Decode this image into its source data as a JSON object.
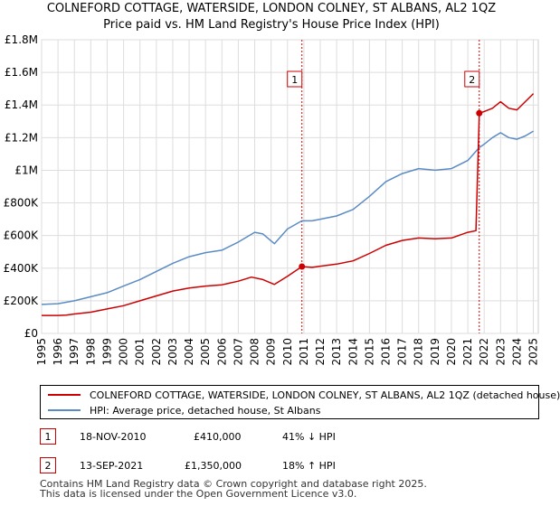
{
  "chart_data": {
    "type": "line",
    "title": "COLNEFORD COTTAGE, WATERSIDE, LONDON COLNEY, ST ALBANS, AL2 1QZ",
    "subtitle": "Price paid vs. HM Land Registry's House Price Index (HPI)",
    "xlim": [
      1995,
      2025.3
    ],
    "ylim": [
      0,
      1800000
    ],
    "x_ticks": [
      1995,
      1996,
      1997,
      1998,
      1999,
      2000,
      2001,
      2002,
      2003,
      2004,
      2005,
      2006,
      2007,
      2008,
      2009,
      2010,
      2011,
      2012,
      2013,
      2014,
      2015,
      2016,
      2017,
      2018,
      2019,
      2020,
      2021,
      2022,
      2023,
      2024,
      2025
    ],
    "x_tick_labels": [
      "1995",
      "1996",
      "1997",
      "1998",
      "1999",
      "2000",
      "2001",
      "2002",
      "2003",
      "2004",
      "2005",
      "2006",
      "2007",
      "2008",
      "2009",
      "2010",
      "2011",
      "2012",
      "2013",
      "2014",
      "2015",
      "2016",
      "2017",
      "2018",
      "2019",
      "2020",
      "2021",
      "2022",
      "2023",
      "2024",
      "2025"
    ],
    "y_ticks": [
      0,
      200000,
      400000,
      600000,
      800000,
      1000000,
      1200000,
      1400000,
      1600000,
      1800000
    ],
    "y_tick_labels": [
      "£0",
      "£200K",
      "£400K",
      "£600K",
      "£800K",
      "£1M",
      "£1.2M",
      "£1.4M",
      "£1.6M",
      "£1.8M"
    ],
    "grid": true,
    "series": [
      {
        "name": "COLNEFORD COTTAGE, WATERSIDE, LONDON COLNEY, ST ALBANS, AL2 1QZ (detached house)",
        "color": "#cc0000",
        "points": [
          [
            1995,
            110000
          ],
          [
            1996,
            110000
          ],
          [
            1996.5,
            112000
          ],
          [
            1997,
            119000
          ],
          [
            1998,
            130000
          ],
          [
            1999,
            150000
          ],
          [
            2000,
            170000
          ],
          [
            2001,
            200000
          ],
          [
            2002,
            230000
          ],
          [
            2003,
            260000
          ],
          [
            2004,
            278000
          ],
          [
            2005,
            290000
          ],
          [
            2006,
            298000
          ],
          [
            2007,
            320000
          ],
          [
            2007.8,
            345000
          ],
          [
            2008.5,
            330000
          ],
          [
            2009.2,
            300000
          ],
          [
            2010,
            350000
          ],
          [
            2010.88,
            410000
          ],
          [
            2011.5,
            405000
          ],
          [
            2012,
            412000
          ],
          [
            2013,
            425000
          ],
          [
            2014,
            445000
          ],
          [
            2015,
            490000
          ],
          [
            2016,
            540000
          ],
          [
            2017,
            570000
          ],
          [
            2018,
            585000
          ],
          [
            2019,
            580000
          ],
          [
            2020,
            585000
          ],
          [
            2021,
            620000
          ],
          [
            2021.5,
            630000
          ],
          [
            2021.7,
            1350000
          ],
          [
            2022,
            1360000
          ],
          [
            2022.5,
            1380000
          ],
          [
            2023,
            1420000
          ],
          [
            2023.5,
            1380000
          ],
          [
            2024,
            1370000
          ],
          [
            2024.5,
            1420000
          ],
          [
            2025,
            1470000
          ]
        ]
      },
      {
        "name": "HPI: Average price, detached house, St Albans",
        "color": "#5b8bc5",
        "points": [
          [
            1995,
            178000
          ],
          [
            1996,
            182000
          ],
          [
            1997,
            200000
          ],
          [
            1998,
            225000
          ],
          [
            1999,
            250000
          ],
          [
            2000,
            290000
          ],
          [
            2001,
            330000
          ],
          [
            2002,
            380000
          ],
          [
            2003,
            430000
          ],
          [
            2004,
            470000
          ],
          [
            2005,
            495000
          ],
          [
            2006,
            510000
          ],
          [
            2007,
            560000
          ],
          [
            2008,
            620000
          ],
          [
            2008.5,
            610000
          ],
          [
            2009.2,
            550000
          ],
          [
            2010,
            640000
          ],
          [
            2010.88,
            690000
          ],
          [
            2011.5,
            690000
          ],
          [
            2012,
            700000
          ],
          [
            2013,
            720000
          ],
          [
            2014,
            760000
          ],
          [
            2015,
            840000
          ],
          [
            2016,
            930000
          ],
          [
            2017,
            980000
          ],
          [
            2018,
            1010000
          ],
          [
            2019,
            1000000
          ],
          [
            2020,
            1010000
          ],
          [
            2021,
            1060000
          ],
          [
            2021.7,
            1140000
          ],
          [
            2022,
            1160000
          ],
          [
            2022.5,
            1200000
          ],
          [
            2023,
            1230000
          ],
          [
            2023.5,
            1200000
          ],
          [
            2024,
            1190000
          ],
          [
            2024.5,
            1210000
          ],
          [
            2025,
            1240000
          ]
        ]
      }
    ],
    "sales": [
      {
        "marker": "1",
        "x": 2010.88,
        "y": 410000
      },
      {
        "marker": "2",
        "x": 2021.7,
        "y": 1350000
      }
    ]
  },
  "legend": {
    "property_label": "COLNEFORD COTTAGE, WATERSIDE, LONDON COLNEY, ST ALBANS, AL2 1QZ (detached house)",
    "hpi_label": "HPI: Average price, detached house, St Albans"
  },
  "transactions": [
    {
      "marker": "1",
      "date": "18-NOV-2010",
      "price": "£410,000",
      "hpi_change": "41% ↓ HPI"
    },
    {
      "marker": "2",
      "date": "13-SEP-2021",
      "price": "£1,350,000",
      "hpi_change": "18% ↑ HPI"
    }
  ],
  "footer": {
    "line1": "Contains HM Land Registry data © Crown copyright and database right 2025.",
    "line2": "This data is licensed under the Open Government Licence v3.0."
  },
  "colors": {
    "property": "#cc0000",
    "hpi": "#5b8bc5",
    "grid": "#dddddd",
    "vline": "#cc0000"
  }
}
